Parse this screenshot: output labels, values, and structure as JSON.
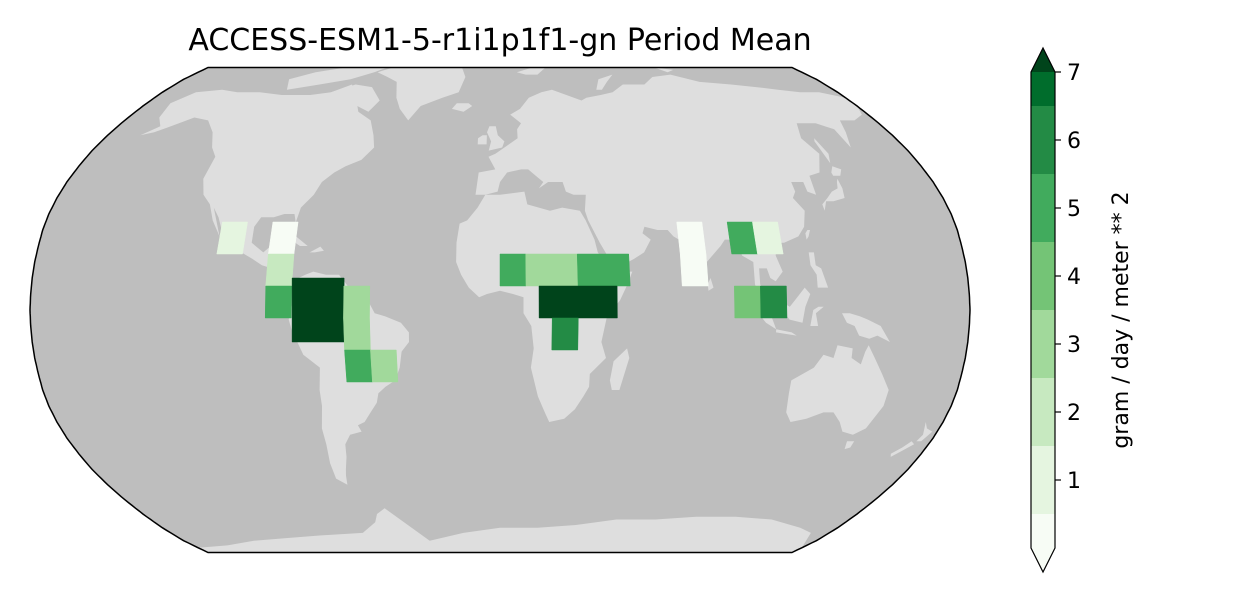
{
  "title": "ACCESS-ESM1-5-r1i1p1f1-gn Period Mean",
  "colors": {
    "ocean": "#bebebe",
    "land": "#dedede",
    "outline": "#000000"
  },
  "colorbar": {
    "label": "gram / day / meter ** 2",
    "levels": [
      0,
      0.5,
      1.5,
      2.5,
      3.5,
      4.5,
      5.5,
      6.5,
      7
    ],
    "ticks": [
      1,
      2,
      3,
      4,
      5,
      6,
      7
    ],
    "extend": "both",
    "bins": [
      {
        "color": "#f7fcf5"
      },
      {
        "color": "#e5f5e0"
      },
      {
        "color": "#c7e9c0"
      },
      {
        "color": "#a1d99b"
      },
      {
        "color": "#74c476"
      },
      {
        "color": "#41ab5d"
      },
      {
        "color": "#238b45"
      },
      {
        "color": "#006d2c"
      },
      {
        "color": "#00441b"
      }
    ]
  },
  "chart_data": {
    "type": "heatmap",
    "title": "ACCESS-ESM1-5-r1i1p1f1-gn Period Mean",
    "projection": "Robinson",
    "units": "gram / day / meter ** 2",
    "cells": [
      {
        "lon": -105,
        "lat": 22.5,
        "lon_w": 10,
        "lat_h": 10,
        "value": 1.0
      },
      {
        "lon": -85,
        "lat": 22.5,
        "lon_w": 10,
        "lat_h": 10,
        "value": 0.4
      },
      {
        "lon": -85,
        "lat": 12.5,
        "lon_w": 10,
        "lat_h": 10,
        "value": 2.0
      },
      {
        "lon": -85,
        "lat": 2.5,
        "lon_w": 10,
        "lat_h": 10,
        "value": 5.0
      },
      {
        "lon": -70,
        "lat": 0,
        "lon_w": 20,
        "lat_h": 20,
        "value": 7.0
      },
      {
        "lon": -55,
        "lat": 2.5,
        "lon_w": 10,
        "lat_h": 10,
        "value": 3.0
      },
      {
        "lon": -55,
        "lat": -7.5,
        "lon_w": 10,
        "lat_h": 10,
        "value": 3.0
      },
      {
        "lon": -55,
        "lat": -17.5,
        "lon_w": 10,
        "lat_h": 10,
        "value": 5.0
      },
      {
        "lon": -45,
        "lat": -17.5,
        "lon_w": 10,
        "lat_h": 10,
        "value": 2.5
      },
      {
        "lon": 5,
        "lat": 12.5,
        "lon_w": 10,
        "lat_h": 10,
        "value": 5.0
      },
      {
        "lon": 20,
        "lat": 12.5,
        "lon_w": 20,
        "lat_h": 10,
        "value": 3.0
      },
      {
        "lon": 40,
        "lat": 12.5,
        "lon_w": 20,
        "lat_h": 10,
        "value": 5.0
      },
      {
        "lon": 30,
        "lat": 2.5,
        "lon_w": 30,
        "lat_h": 10,
        "value": 7.0
      },
      {
        "lon": 25,
        "lat": -7.5,
        "lon_w": 10,
        "lat_h": 10,
        "value": 6.0
      },
      {
        "lon": 75,
        "lat": 22.5,
        "lon_w": 10,
        "lat_h": 10,
        "value": 0.4
      },
      {
        "lon": 75,
        "lat": 12.5,
        "lon_w": 10,
        "lat_h": 10,
        "value": 0.4
      },
      {
        "lon": 95,
        "lat": 22.5,
        "lon_w": 10,
        "lat_h": 10,
        "value": 5.0
      },
      {
        "lon": 105,
        "lat": 22.5,
        "lon_w": 10,
        "lat_h": 10,
        "value": 1.0
      },
      {
        "lon": 95,
        "lat": 2.5,
        "lon_w": 10,
        "lat_h": 10,
        "value": 4.0
      },
      {
        "lon": 105,
        "lat": 2.5,
        "lon_w": 10,
        "lat_h": 10,
        "value": 6.0
      }
    ],
    "colorbar_ticks": [
      1,
      2,
      3,
      4,
      5,
      6,
      7
    ],
    "colorbar_label": "gram / day / meter ** 2"
  }
}
